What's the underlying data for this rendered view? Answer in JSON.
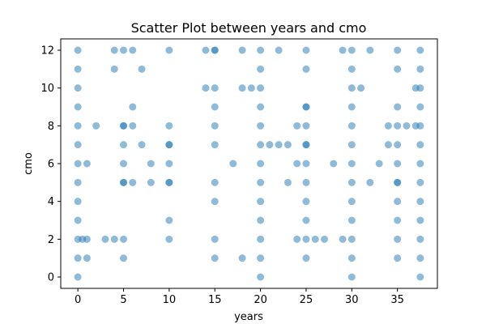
{
  "chart_data": {
    "type": "scatter",
    "title": "Scatter Plot between years and cmo",
    "xlabel": "years",
    "ylabel": "cmo",
    "xlim": [
      -1.875,
      39.375
    ],
    "ylim": [
      -0.6,
      12.6
    ],
    "xticks": [
      0,
      5,
      10,
      15,
      20,
      25,
      30,
      35
    ],
    "yticks": [
      0,
      2,
      4,
      6,
      8,
      10,
      12
    ],
    "marker_color": "#1f77b4",
    "marker_alpha": 0.5,
    "grid": false,
    "x": [
      0,
      0,
      0,
      0,
      0,
      0,
      0,
      0,
      0,
      0,
      0,
      0,
      0,
      0.5,
      1,
      1,
      1,
      2,
      3,
      4,
      4,
      4,
      5,
      5,
      5,
      5,
      5,
      5,
      5,
      5,
      5,
      6,
      6,
      6,
      6,
      7,
      7,
      8,
      8,
      10,
      10,
      10,
      10,
      10,
      10,
      10,
      10,
      10,
      14,
      14,
      15,
      15,
      15,
      15,
      15,
      15,
      15,
      15,
      15,
      15,
      17,
      18,
      18,
      18,
      19,
      20,
      20,
      20,
      20,
      20,
      20,
      20,
      20,
      20,
      20,
      20,
      20,
      20,
      21,
      22,
      22,
      23,
      23,
      24,
      24,
      24,
      25,
      25,
      25,
      25,
      25,
      25,
      25,
      25,
      25,
      25,
      25,
      25,
      25,
      26,
      27,
      28,
      29,
      29,
      30,
      30,
      30,
      30,
      30,
      30,
      30,
      30,
      30,
      30,
      30,
      30,
      30,
      31,
      32,
      32,
      33,
      34,
      34,
      35,
      35,
      35,
      35,
      35,
      35,
      35,
      35,
      35,
      35,
      35,
      35,
      36,
      37,
      37,
      37.5,
      37.5,
      37.5,
      37.5,
      37.5,
      37.5,
      37.5,
      37.5,
      37.5,
      37.5,
      37.5,
      37.5,
      37.5
    ],
    "y": [
      0,
      1,
      2,
      3,
      4,
      5,
      6,
      7,
      8,
      9,
      10,
      11,
      12,
      2,
      1,
      6,
      2,
      8,
      2,
      2,
      12,
      11,
      12,
      8,
      7,
      6,
      5,
      1,
      2,
      8,
      5,
      12,
      9,
      8,
      5,
      11,
      7,
      6,
      5,
      12,
      8,
      7,
      6,
      5,
      3,
      2,
      7,
      5,
      12,
      10,
      12,
      10,
      9,
      8,
      7,
      5,
      4,
      2,
      1,
      12,
      6,
      12,
      10,
      1,
      10,
      0,
      1,
      2,
      3,
      4,
      5,
      6,
      7,
      8,
      9,
      10,
      11,
      12,
      7,
      12,
      7,
      7,
      5,
      8,
      6,
      2,
      12,
      11,
      9,
      8,
      7,
      6,
      5,
      4,
      3,
      2,
      1,
      7,
      9,
      2,
      2,
      6,
      12,
      2,
      1,
      2,
      3,
      4,
      5,
      6,
      7,
      8,
      9,
      10,
      11,
      12,
      0,
      10,
      12,
      5,
      6,
      8,
      7,
      12,
      9,
      8,
      7,
      6,
      5,
      4,
      3,
      2,
      1,
      11,
      5,
      8,
      10,
      8,
      0,
      1,
      2,
      3,
      4,
      5,
      6,
      7,
      8,
      9,
      10,
      11,
      12
    ]
  }
}
